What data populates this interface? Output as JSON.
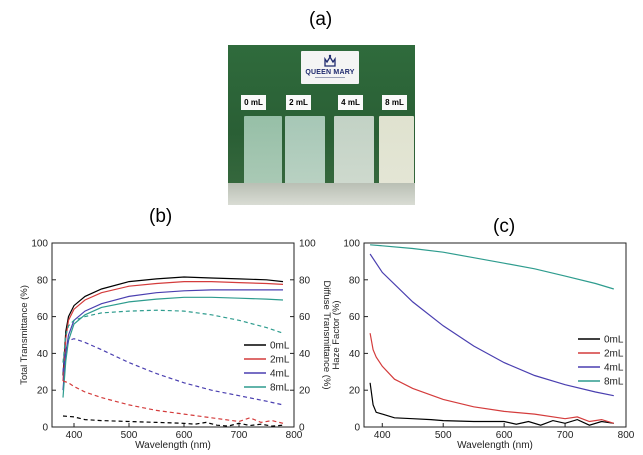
{
  "labels": {
    "a": "(a)",
    "b": "(b)",
    "c": "(c)"
  },
  "photo": {
    "logo_text": "QUEEN MARY",
    "samples": [
      "0 mL",
      "2 mL",
      "4 mL",
      "8 mL"
    ]
  },
  "colors": {
    "0mL": "#000000",
    "2mL": "#d43c3c",
    "4mL": "#4a3fb0",
    "8mL": "#2e9c8e"
  },
  "chart_data": [
    {
      "type": "line",
      "xlabel": "Wavelength (nm)",
      "ylabel": "Total Transmittance (%)",
      "y2label": "Diffuse Transmittance (%)",
      "xlim": [
        360,
        800
      ],
      "ylim": [
        0,
        100
      ],
      "y2lim": [
        0,
        100
      ],
      "xticks": [
        400,
        500,
        600,
        700,
        800
      ],
      "yticks": [
        0,
        20,
        40,
        60,
        80,
        100
      ],
      "grid": false,
      "legend_position": "right",
      "series": [
        {
          "name": "0mL",
          "axis": "left",
          "style": "solid",
          "x": [
            380,
            385,
            390,
            400,
            420,
            450,
            500,
            550,
            600,
            650,
            700,
            750,
            780
          ],
          "y": [
            28,
            52,
            60,
            66,
            71,
            75,
            79,
            80.5,
            81.5,
            81,
            80.5,
            80,
            79
          ]
        },
        {
          "name": "2mL",
          "axis": "left",
          "style": "solid",
          "x": [
            380,
            385,
            390,
            400,
            420,
            450,
            500,
            550,
            600,
            650,
            700,
            750,
            780
          ],
          "y": [
            25,
            48,
            58,
            64,
            69,
            73,
            76.5,
            78,
            79,
            79,
            78.5,
            78,
            77.5
          ]
        },
        {
          "name": "4mL",
          "axis": "left",
          "style": "solid",
          "x": [
            380,
            385,
            390,
            400,
            420,
            450,
            500,
            550,
            600,
            650,
            700,
            750,
            780
          ],
          "y": [
            20,
            40,
            50,
            58,
            63,
            67,
            71,
            73,
            74,
            74.5,
            74.5,
            74.5,
            74.5
          ]
        },
        {
          "name": "8mL",
          "axis": "left",
          "style": "solid",
          "x": [
            380,
            385,
            390,
            400,
            420,
            450,
            500,
            550,
            600,
            650,
            700,
            750,
            780
          ],
          "y": [
            16,
            36,
            47,
            56,
            61,
            65,
            68,
            69.5,
            70.5,
            70.5,
            70,
            69.5,
            69
          ]
        },
        {
          "name": "0mL",
          "axis": "right",
          "style": "dashed",
          "x": [
            380,
            400,
            420,
            450,
            500,
            550,
            600,
            620,
            640,
            660,
            680,
            700,
            720,
            740,
            760,
            780
          ],
          "y": [
            6,
            5.5,
            4,
            3.5,
            3,
            2.5,
            2,
            1.5,
            2.5,
            1,
            0.5,
            2,
            0.8,
            1.5,
            0.5,
            1
          ]
        },
        {
          "name": "2mL",
          "axis": "right",
          "style": "dashed",
          "x": [
            380,
            390,
            400,
            420,
            450,
            500,
            550,
            600,
            650,
            700,
            720,
            740,
            760,
            780
          ],
          "y": [
            25,
            24,
            22,
            19,
            16,
            12,
            9,
            7,
            5,
            3,
            5,
            2.5,
            3.5,
            2
          ]
        },
        {
          "name": "4mL",
          "axis": "right",
          "style": "dashed",
          "x": [
            380,
            385,
            390,
            400,
            420,
            450,
            500,
            550,
            600,
            650,
            700,
            750,
            780
          ],
          "y": [
            30,
            42,
            47,
            48,
            46,
            42,
            35,
            29,
            24,
            20,
            17,
            14,
            12
          ]
        },
        {
          "name": "8mL",
          "axis": "right",
          "style": "dashed",
          "x": [
            380,
            385,
            390,
            400,
            420,
            450,
            500,
            550,
            600,
            650,
            700,
            750,
            780
          ],
          "y": [
            35,
            50,
            55,
            58,
            60,
            62,
            63,
            63.5,
            63,
            61,
            58,
            54,
            51
          ]
        }
      ]
    },
    {
      "type": "line",
      "xlabel": "Wavelength (nm)",
      "ylabel": "Haze Factor (%)",
      "xlim": [
        370,
        800
      ],
      "ylim": [
        0,
        100
      ],
      "xticks": [
        400,
        500,
        600,
        700,
        800
      ],
      "yticks": [
        0,
        20,
        40,
        60,
        80,
        100
      ],
      "grid": false,
      "legend_position": "right",
      "series": [
        {
          "name": "0mL",
          "x": [
            380,
            385,
            390,
            400,
            420,
            450,
            480,
            500,
            550,
            600,
            620,
            640,
            660,
            680,
            700,
            720,
            740,
            760,
            780
          ],
          "y": [
            24,
            12,
            8,
            7,
            5,
            4.5,
            4,
            3.5,
            3,
            3,
            1.5,
            3,
            1,
            3.5,
            2,
            4,
            1,
            3,
            2
          ]
        },
        {
          "name": "2mL",
          "x": [
            380,
            385,
            390,
            400,
            420,
            450,
            500,
            550,
            600,
            650,
            700,
            720,
            740,
            760,
            780
          ],
          "y": [
            51,
            42,
            38,
            33,
            26,
            21,
            15,
            11,
            8.5,
            7,
            4.5,
            5.5,
            3,
            4,
            2
          ]
        },
        {
          "name": "4mL",
          "x": [
            380,
            400,
            450,
            500,
            550,
            600,
            650,
            700,
            750,
            780
          ],
          "y": [
            94,
            84,
            68,
            55,
            44,
            35,
            28,
            23,
            19,
            17
          ]
        },
        {
          "name": "8mL",
          "x": [
            380,
            400,
            450,
            500,
            550,
            600,
            650,
            700,
            750,
            780
          ],
          "y": [
            99,
            98.5,
            97,
            95,
            92,
            89,
            86,
            82,
            78,
            75
          ]
        }
      ]
    }
  ]
}
